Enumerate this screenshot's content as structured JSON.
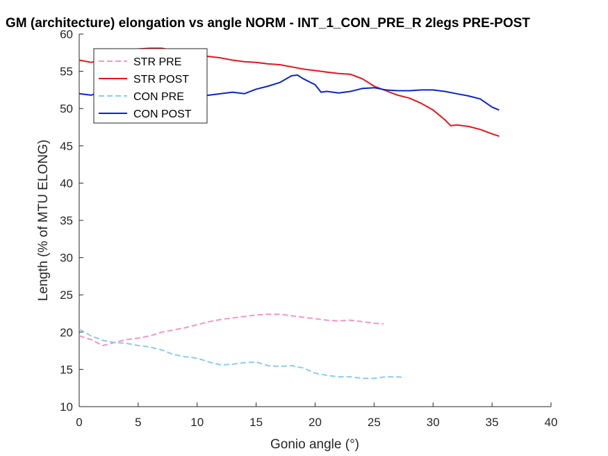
{
  "chart_data": {
    "type": "line",
    "title": "GM (architecture) elongation vs angle NORM - INT_1_CON_PRE_R 2legs PRE-POST",
    "xlabel": "Gonio angle (°)",
    "ylabel": "Length (% of MTU ELONG)",
    "xlim": [
      0,
      40
    ],
    "ylim": [
      10,
      60
    ],
    "xticks": [
      0,
      5,
      10,
      15,
      20,
      25,
      30,
      35,
      40
    ],
    "yticks": [
      10,
      15,
      20,
      25,
      30,
      35,
      40,
      45,
      50,
      55,
      60
    ],
    "grid": false,
    "legend_position": "top-left",
    "series": [
      {
        "name": "STR PRE",
        "color": "#f595c6",
        "dash": "dashed",
        "x": [
          0,
          1,
          2,
          3,
          4,
          5,
          6,
          7,
          8,
          9,
          10,
          11,
          12,
          13,
          14,
          15,
          16,
          17,
          18,
          19,
          20,
          21,
          22,
          23,
          24,
          25,
          25.8
        ],
        "y": [
          19.5,
          19.0,
          18.2,
          18.6,
          19.0,
          19.2,
          19.5,
          20.0,
          20.3,
          20.6,
          21.0,
          21.4,
          21.7,
          21.9,
          22.1,
          22.3,
          22.4,
          22.4,
          22.2,
          22.0,
          21.8,
          21.6,
          21.5,
          21.6,
          21.4,
          21.2,
          21.1
        ]
      },
      {
        "name": "STR POST",
        "color": "#e8141c",
        "dash": "solid",
        "x": [
          0,
          1,
          2,
          3,
          4,
          5,
          6,
          7,
          8,
          9,
          10,
          11,
          12,
          13,
          14,
          15,
          16,
          17,
          18,
          19,
          20,
          21,
          22,
          23,
          24,
          25,
          26,
          27,
          28,
          29,
          30,
          31,
          31.5,
          32,
          33,
          34,
          35,
          35.6
        ],
        "y": [
          56.5,
          56.2,
          56.5,
          57.3,
          57.8,
          58.0,
          58.1,
          58.1,
          57.8,
          57.5,
          57.2,
          57.0,
          56.8,
          56.5,
          56.3,
          56.2,
          56.0,
          55.9,
          55.6,
          55.3,
          55.1,
          54.9,
          54.7,
          54.6,
          54.0,
          53.0,
          52.4,
          51.8,
          51.4,
          50.7,
          49.8,
          48.5,
          47.7,
          47.8,
          47.6,
          47.2,
          46.6,
          46.3
        ]
      },
      {
        "name": "CON PRE",
        "color": "#8ccbf0",
        "dash": "dashed",
        "x": [
          0,
          1,
          2,
          3,
          4,
          5,
          6,
          7,
          8,
          9,
          10,
          11,
          12,
          13,
          14,
          15,
          16,
          17,
          18,
          19,
          20,
          21,
          22,
          23,
          24,
          25,
          26,
          27,
          27.6
        ],
        "y": [
          20.4,
          19.5,
          18.9,
          18.6,
          18.5,
          18.2,
          18.0,
          17.6,
          17.0,
          16.7,
          16.5,
          16.0,
          15.6,
          15.7,
          15.9,
          16.0,
          15.5,
          15.4,
          15.5,
          15.2,
          14.5,
          14.2,
          14.0,
          14.0,
          13.8,
          13.8,
          14.0,
          14.0,
          13.9
        ]
      },
      {
        "name": "CON POST",
        "color": "#0a24c8",
        "dash": "solid",
        "x": [
          0,
          1,
          2,
          3,
          4,
          5,
          6,
          7,
          8,
          9,
          10,
          11,
          12,
          13,
          14,
          15,
          16,
          17,
          18,
          18.5,
          19,
          20,
          20.5,
          21,
          22,
          23,
          24,
          25,
          26,
          27,
          28,
          29,
          30,
          31,
          32,
          33,
          34,
          35,
          35.6
        ],
        "y": [
          52.0,
          51.8,
          52.3,
          52.6,
          52.9,
          53.0,
          52.3,
          52.0,
          51.8,
          51.4,
          51.5,
          51.8,
          52.0,
          52.2,
          52.0,
          52.6,
          53.0,
          53.5,
          54.4,
          54.5,
          54.0,
          53.2,
          52.2,
          52.3,
          52.1,
          52.3,
          52.7,
          52.8,
          52.5,
          52.4,
          52.4,
          52.5,
          52.5,
          52.3,
          52.0,
          51.7,
          51.3,
          50.2,
          49.8
        ]
      }
    ]
  }
}
